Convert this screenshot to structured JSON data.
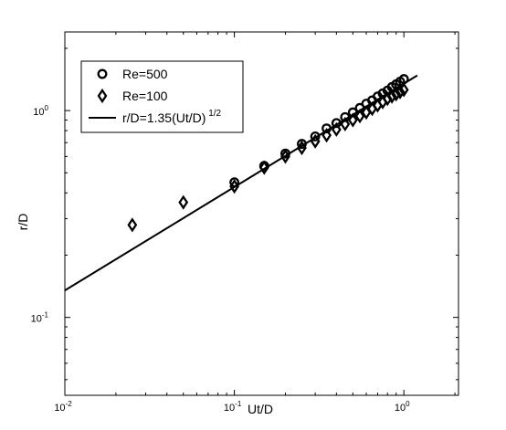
{
  "chart_data": {
    "type": "scatter",
    "title": "",
    "xlabel": "Ut/D",
    "ylabel": "r/D",
    "xscale": "log",
    "yscale": "log",
    "xlim": [
      0.01,
      2.1
    ],
    "ylim": [
      0.042,
      2.4
    ],
    "grid": false,
    "legend_position": "top-left",
    "x_ticks": [
      {
        "value": 0.01,
        "base": "10",
        "exp": "-2"
      },
      {
        "value": 0.1,
        "base": "10",
        "exp": "-1"
      },
      {
        "value": 1,
        "base": "10",
        "exp": "0"
      }
    ],
    "y_ticks": [
      {
        "value": 0.1,
        "base": "10",
        "exp": "-1"
      },
      {
        "value": 1,
        "base": "10",
        "exp": "0"
      }
    ],
    "series": [
      {
        "name": "Re=500",
        "marker": "circle",
        "x": [
          0.1,
          0.15,
          0.2,
          0.25,
          0.3,
          0.35,
          0.4,
          0.45,
          0.5,
          0.55,
          0.6,
          0.65,
          0.7,
          0.75,
          0.8,
          0.85,
          0.9,
          0.95,
          1.0
        ],
        "y": [
          0.45,
          0.54,
          0.62,
          0.69,
          0.75,
          0.82,
          0.87,
          0.93,
          0.98,
          1.03,
          1.08,
          1.12,
          1.17,
          1.21,
          1.25,
          1.3,
          1.34,
          1.38,
          1.42
        ]
      },
      {
        "name": "Re=100",
        "marker": "diamond",
        "x": [
          0.025,
          0.05,
          0.1,
          0.15,
          0.2,
          0.25,
          0.3,
          0.35,
          0.4,
          0.45,
          0.5,
          0.55,
          0.6,
          0.65,
          0.7,
          0.75,
          0.8,
          0.85,
          0.9,
          0.95,
          1.0
        ],
        "y": [
          0.28,
          0.36,
          0.43,
          0.53,
          0.6,
          0.66,
          0.71,
          0.76,
          0.81,
          0.86,
          0.9,
          0.94,
          0.98,
          1.02,
          1.06,
          1.1,
          1.14,
          1.17,
          1.2,
          1.23,
          1.26
        ]
      },
      {
        "name": "r/D=1.35(Ut/D)",
        "name_superscript": "1/2",
        "marker": "line",
        "x": [
          0.01,
          1.2
        ],
        "y": [
          0.135,
          1.479
        ]
      }
    ]
  }
}
